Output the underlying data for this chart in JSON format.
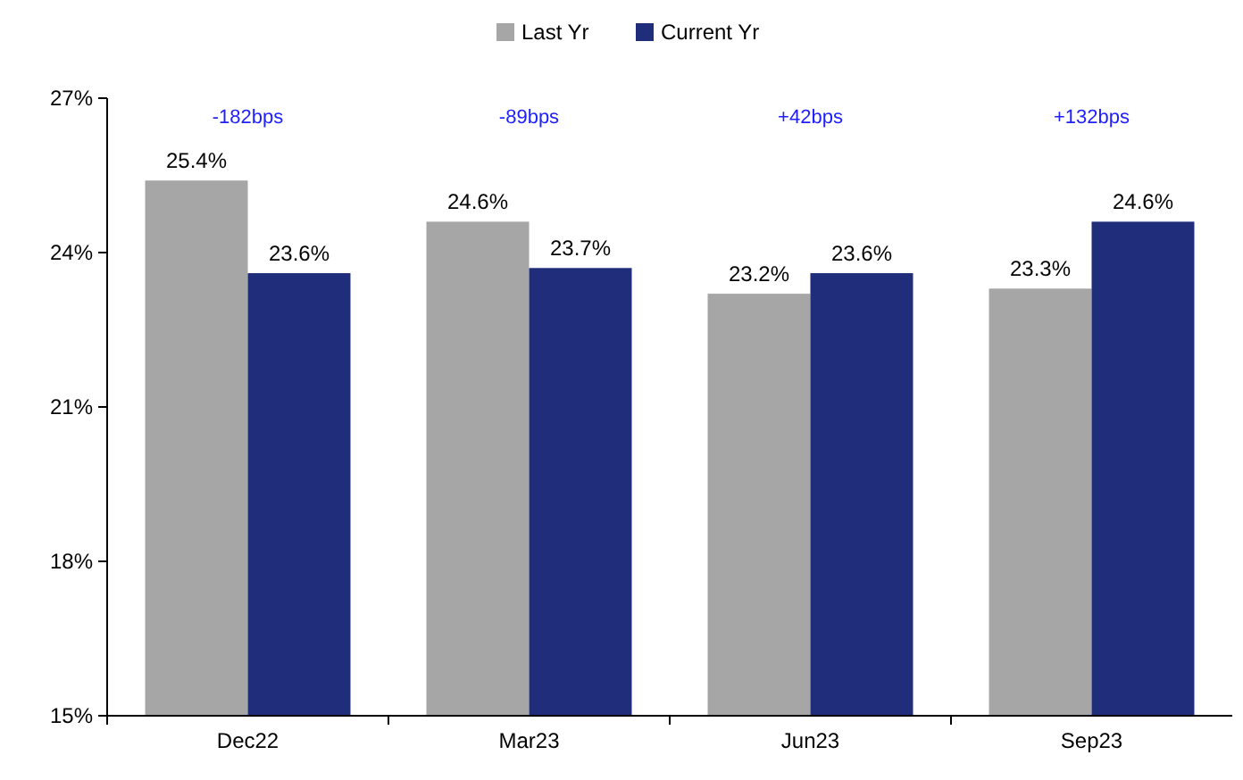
{
  "chart_data": {
    "type": "bar",
    "categories": [
      "Dec22",
      "Mar23",
      "Jun23",
      "Sep23"
    ],
    "series": [
      {
        "name": "Last Yr",
        "color": "#a6a6a6",
        "values": [
          25.4,
          24.6,
          23.2,
          23.3
        ],
        "value_labels": [
          "25.4%",
          "24.6%",
          "23.2%",
          "23.3%"
        ]
      },
      {
        "name": "Current Yr",
        "color": "#1f2d7b",
        "values": [
          23.6,
          23.7,
          23.6,
          24.6
        ],
        "value_labels": [
          "23.6%",
          "23.7%",
          "23.6%",
          "24.6%"
        ]
      }
    ],
    "ylim": [
      15,
      27
    ],
    "yticks": [
      {
        "value": 15,
        "label": "15%"
      },
      {
        "value": 18,
        "label": "18%"
      },
      {
        "value": 21,
        "label": "21%"
      },
      {
        "value": 24,
        "label": "24%"
      },
      {
        "value": 27,
        "label": "27%"
      }
    ],
    "annotations": [
      "-182bps",
      "-89bps",
      "+42bps",
      "+132bps"
    ],
    "legend": "top",
    "grid": false
  }
}
